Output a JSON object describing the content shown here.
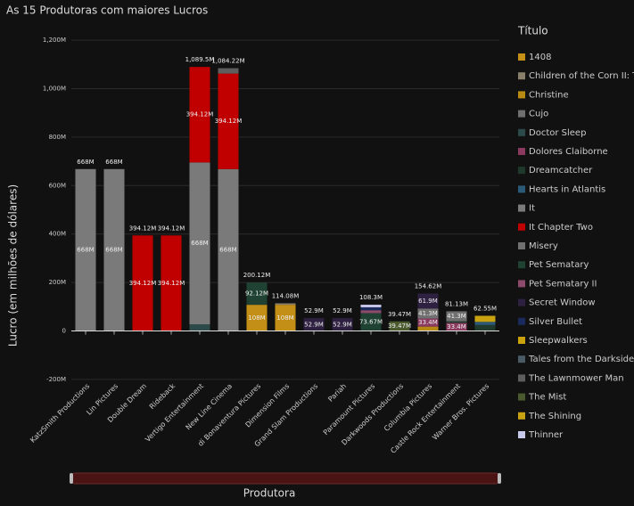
{
  "chart_data": {
    "type": "stacked_bar",
    "title": "As 15 Produtoras com maiores Lucros",
    "x_label": "Produtora",
    "y_label": "Lucro (em milhões de dólares)",
    "legend_title": "Título",
    "legend_position": "right",
    "grid": true,
    "categories": [
      "KatzSmith Productions",
      "Lin Pictures",
      "Double Dream",
      "Rideback",
      "Vertigo Entertainment",
      "New Line Cinema",
      "di Bonaventura Pictures",
      "Dimension Films",
      "Grand Slam Productions",
      "Pariah",
      "Paramount Pictures",
      "Darkwoods Productions",
      "Columbia Pictures",
      "Castle Rock Entertainment",
      "Warner Bros. Pictures"
    ],
    "totals": [
      668,
      668,
      394.12,
      394.12,
      1089.5,
      1084.22,
      200.12,
      114.08,
      52.9,
      52.9,
      108.3,
      39.47,
      154.62,
      81.13,
      62.55
    ],
    "total_labels": [
      "668M",
      "668M",
      "394.12M",
      "394.12M",
      "1,089.5M",
      "1,084.22M",
      "200.12M",
      "114.08M",
      "52.9M",
      "52.9M",
      "108.3M",
      "39.47M",
      "154.62M",
      "81.13M",
      "62.55M"
    ],
    "ylim": [
      -215,
      1237
    ],
    "yticks": [
      {
        "value": -200,
        "label": "-200M"
      },
      0,
      {
        "value": 200,
        "label": "200M"
      },
      {
        "value": 400,
        "label": "400M"
      },
      {
        "value": 600,
        "label": "600M"
      },
      {
        "value": 800,
        "label": "800M"
      },
      {
        "value": 1000,
        "label": "1,000M"
      },
      {
        "value": 1200,
        "label": "1,200M"
      }
    ],
    "series": [
      {
        "name": "1408",
        "color": "#c38f17",
        "values": [
          null,
          null,
          null,
          null,
          null,
          null,
          108,
          108,
          null,
          null,
          null,
          null,
          null,
          null,
          null
        ],
        "value_labels": [
          null,
          null,
          null,
          null,
          null,
          null,
          "108M",
          "108M",
          null,
          null,
          null,
          null,
          null,
          null,
          null
        ]
      },
      {
        "name": "Children of the Corn II: T…",
        "color": "#8a7f6a",
        "values": [
          null,
          null,
          null,
          null,
          null,
          null,
          null,
          6.08,
          null,
          null,
          null,
          null,
          null,
          null,
          null
        ]
      },
      {
        "name": "Christine",
        "color": "#b88a12",
        "values": [
          null,
          null,
          null,
          null,
          null,
          null,
          null,
          null,
          null,
          null,
          null,
          null,
          18.02,
          null,
          null
        ]
      },
      {
        "name": "Cujo",
        "color": "#6f6f6f",
        "values": [
          null,
          null,
          null,
          null,
          null,
          null,
          null,
          null,
          null,
          null,
          null,
          null,
          null,
          null,
          null
        ]
      },
      {
        "name": "Doctor Sleep",
        "color": "#2d4a4a",
        "values": [
          null,
          null,
          null,
          null,
          27.38,
          null,
          null,
          null,
          null,
          null,
          null,
          null,
          null,
          null,
          null
        ]
      },
      {
        "name": "Dolores Claiborne",
        "color": "#8a3a5e",
        "values": [
          null,
          null,
          null,
          null,
          null,
          null,
          null,
          null,
          null,
          null,
          null,
          null,
          33.4,
          33.4,
          null
        ],
        "value_labels": [
          null,
          null,
          null,
          null,
          null,
          null,
          null,
          null,
          null,
          null,
          null,
          null,
          "33.4M",
          "33.4M",
          null
        ]
      },
      {
        "name": "Dreamcatcher",
        "color": "#1f3a2c",
        "values": [
          null,
          null,
          null,
          null,
          null,
          null,
          null,
          null,
          null,
          null,
          null,
          null,
          null,
          6.43,
          24.55
        ]
      },
      {
        "name": "Hearts in Atlantis",
        "color": "#2b5a78",
        "values": [
          null,
          null,
          null,
          null,
          null,
          null,
          null,
          null,
          null,
          null,
          null,
          null,
          null,
          null,
          13
        ]
      },
      {
        "name": "It",
        "color": "#7a7a7a",
        "values": [
          668,
          668,
          null,
          null,
          668,
          668,
          null,
          null,
          null,
          null,
          null,
          null,
          null,
          null,
          null
        ],
        "value_labels": [
          "668M",
          "668M",
          null,
          null,
          "668M",
          "668M",
          null,
          null,
          null,
          null,
          null,
          null,
          null,
          null,
          null
        ]
      },
      {
        "name": "It Chapter Two",
        "color": "#c00000",
        "values": [
          null,
          null,
          394.12,
          394.12,
          394.12,
          394.12,
          null,
          null,
          null,
          null,
          null,
          null,
          null,
          null,
          null
        ],
        "value_labels": [
          null,
          null,
          "394.12M",
          "394.12M",
          "394.12M",
          "394.12M",
          null,
          null,
          null,
          null,
          null,
          null,
          null,
          null,
          null
        ]
      },
      {
        "name": "Misery",
        "color": "#707070",
        "values": [
          null,
          null,
          null,
          null,
          null,
          null,
          null,
          null,
          null,
          null,
          null,
          null,
          41.3,
          41.3,
          null
        ],
        "value_labels": [
          null,
          null,
          null,
          null,
          null,
          null,
          null,
          null,
          null,
          null,
          null,
          null,
          "41.3M",
          "41.3M",
          null
        ]
      },
      {
        "name": "Pet Sematary",
        "color": "#1f4233",
        "values": [
          null,
          null,
          null,
          null,
          null,
          null,
          92.12,
          null,
          null,
          null,
          73.67,
          null,
          null,
          null,
          null
        ],
        "value_labels": [
          null,
          null,
          null,
          null,
          null,
          null,
          "92.12M",
          null,
          null,
          null,
          "73.67M",
          null,
          null,
          null,
          null
        ]
      },
      {
        "name": "Pet Sematary II",
        "color": "#8c4b6b",
        "values": [
          null,
          null,
          null,
          null,
          null,
          null,
          null,
          null,
          null,
          null,
          12,
          null,
          null,
          null,
          null
        ]
      },
      {
        "name": "Secret Window",
        "color": "#2e2040",
        "values": [
          null,
          null,
          null,
          null,
          null,
          null,
          null,
          null,
          52.9,
          52.9,
          null,
          null,
          61.9,
          null,
          null
        ],
        "value_labels": [
          null,
          null,
          null,
          null,
          null,
          null,
          null,
          null,
          "52.9M",
          "52.9M",
          null,
          null,
          "61.9M",
          null,
          null
        ]
      },
      {
        "name": "Silver Bullet",
        "color": "#1b2a5c",
        "values": [
          null,
          null,
          null,
          null,
          null,
          null,
          null,
          null,
          null,
          null,
          12,
          null,
          null,
          null,
          null
        ]
      },
      {
        "name": "Sleepwalkers",
        "color": "#c9a20c",
        "values": [
          null,
          null,
          null,
          null,
          null,
          null,
          null,
          null,
          null,
          null,
          null,
          null,
          null,
          null,
          null
        ]
      },
      {
        "name": "Tales from the Darkside: …",
        "color": "#4b5b66",
        "values": [
          null,
          null,
          null,
          null,
          null,
          null,
          null,
          null,
          null,
          null,
          null,
          null,
          null,
          null,
          null
        ]
      },
      {
        "name": "The Lawnmower Man",
        "color": "#5e5e5e",
        "values": [
          null,
          null,
          null,
          null,
          null,
          22.1,
          null,
          null,
          null,
          null,
          null,
          null,
          null,
          null,
          null
        ]
      },
      {
        "name": "The Mist",
        "color": "#4a5a2e",
        "values": [
          null,
          null,
          null,
          null,
          null,
          null,
          null,
          null,
          null,
          null,
          null,
          39.47,
          null,
          null,
          null
        ],
        "value_labels": [
          null,
          null,
          null,
          null,
          null,
          null,
          null,
          null,
          null,
          null,
          null,
          "39.47M",
          null,
          null,
          null
        ]
      },
      {
        "name": "The Shining",
        "color": "#c9a212",
        "values": [
          null,
          null,
          null,
          null,
          null,
          null,
          null,
          null,
          null,
          null,
          null,
          null,
          null,
          null,
          25
        ]
      },
      {
        "name": "Thinner",
        "color": "#c8c8ea",
        "values": [
          null,
          null,
          null,
          null,
          null,
          null,
          null,
          null,
          null,
          null,
          10.63,
          null,
          null,
          null,
          null
        ]
      }
    ]
  }
}
